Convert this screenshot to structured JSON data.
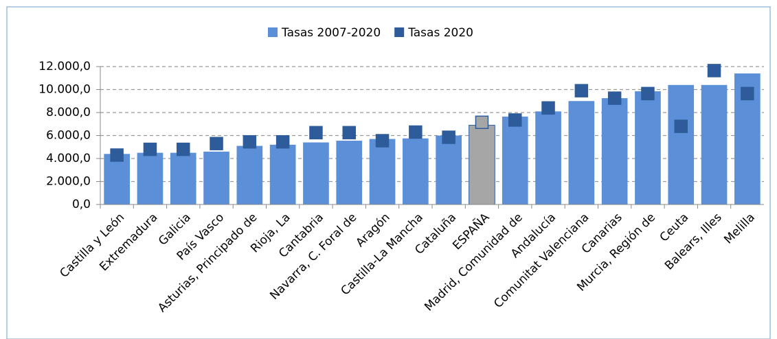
{
  "chart_data": {
    "type": "bar",
    "categories": [
      "Castilla y León",
      "Extremadura",
      "Galicia",
      "País Vasco",
      "Asturias, Principado de",
      "Rioja, La",
      "Cantabria",
      "Navarra, C. Foral de",
      "Aragón",
      "Castilla-La Mancha",
      "Cataluña",
      "ESPAÑA",
      "Madrid, Comunidad de",
      "Andalucía",
      "Comunitat Valenciana",
      "Canarias",
      "Murcia, Región de",
      "Ceuta",
      "Balears, Illes",
      "Melilla"
    ],
    "series": [
      {
        "name": "Tasas 2007-2020",
        "color": "#5b8fd8",
        "mark": "bar",
        "colors": [
          "#5b8fd8",
          "#5b8fd8",
          "#5b8fd8",
          "#5b8fd8",
          "#5b8fd8",
          "#5b8fd8",
          "#5b8fd8",
          "#5b8fd8",
          "#5b8fd8",
          "#5b8fd8",
          "#5b8fd8",
          "#a6a6a6",
          "#5b8fd8",
          "#5b8fd8",
          "#5b8fd8",
          "#5b8fd8",
          "#5b8fd8",
          "#5b8fd8",
          "#5b8fd8",
          "#5b8fd8"
        ],
        "values": [
          4400,
          4500,
          4500,
          4600,
          5100,
          5200,
          5400,
          5550,
          5700,
          5750,
          6000,
          6900,
          7650,
          8100,
          9000,
          9250,
          9850,
          10400,
          10400,
          11400
        ]
      },
      {
        "name": "Tasas 2020",
        "color": "#2e5c9a",
        "mark": "square",
        "colors": [
          "#2e5c9a",
          "#2e5c9a",
          "#2e5c9a",
          "#2e5c9a",
          "#2e5c9a",
          "#2e5c9a",
          "#2e5c9a",
          "#2e5c9a",
          "#2e5c9a",
          "#2e5c9a",
          "#2e5c9a",
          "#a6a6a6",
          "#2e5c9a",
          "#2e5c9a",
          "#2e5c9a",
          "#2e5c9a",
          "#2e5c9a",
          "#2e5c9a",
          "#2e5c9a",
          "#2e5c9a"
        ],
        "values": [
          4300,
          4800,
          4800,
          5300,
          5450,
          5450,
          6250,
          6250,
          5550,
          6300,
          5850,
          7150,
          7350,
          8400,
          9900,
          9250,
          9650,
          6800,
          11650,
          9650
        ]
      }
    ],
    "ylim": [
      0,
      12000
    ],
    "yticks": [
      {
        "value": 0,
        "label": "0,0"
      },
      {
        "value": 2000,
        "label": "2.000,0"
      },
      {
        "value": 4000,
        "label": "4.000,0"
      },
      {
        "value": 6000,
        "label": "6.000,0"
      },
      {
        "value": 8000,
        "label": "8.000,0"
      },
      {
        "value": 10000,
        "label": "10.000,0"
      },
      {
        "value": 12000,
        "label": "12.000,0"
      }
    ],
    "grid": true,
    "legend": "top"
  }
}
